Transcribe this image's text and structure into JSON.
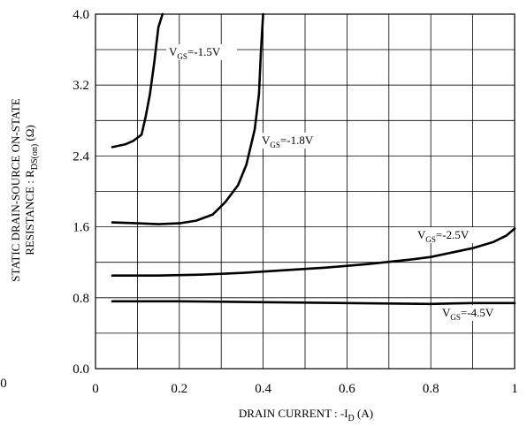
{
  "chart_data": {
    "type": "line",
    "xlabel": "DRAIN CURRENT : -I",
    "xlabel_sub": "D",
    "xlabel_unit": " (A)",
    "ylabel_line1": "STATIC DRAIN-SOURCE ON-STATE",
    "ylabel_line2_pre": "RESISTANCE : R",
    "ylabel_line2_sub": "DS(on)",
    "ylabel_line2_post": " (Ω)",
    "xlim": [
      0,
      1
    ],
    "ylim": [
      0,
      4
    ],
    "x_ticks": [
      0,
      0.2,
      0.4,
      0.6,
      0.8,
      1
    ],
    "x_tick_labels": [
      "0",
      "0.2",
      "0.4",
      "0.6",
      "0.8",
      "1"
    ],
    "y_ticks": [
      0,
      0.8,
      1.6,
      2.4,
      3.2,
      4
    ],
    "y_tick_labels": [
      "0.0",
      "0.8",
      "1.6",
      "2.4",
      "3.2",
      "4.0"
    ],
    "stray_label": "0",
    "grid": true,
    "series": [
      {
        "name": "VGS=-1.5V",
        "label_main": "V",
        "label_sub": "GS",
        "label_post": "=-1.5V",
        "x": [
          0.04,
          0.07,
          0.09,
          0.11,
          0.12,
          0.13,
          0.14,
          0.15,
          0.16
        ],
        "y": [
          2.5,
          2.53,
          2.57,
          2.64,
          2.85,
          3.1,
          3.45,
          3.85,
          4.0
        ]
      },
      {
        "name": "VGS=-1.8V",
        "label_main": "V",
        "label_sub": "GS",
        "label_post": "=-1.8V",
        "x": [
          0.04,
          0.1,
          0.15,
          0.2,
          0.24,
          0.28,
          0.31,
          0.34,
          0.36,
          0.38,
          0.39,
          0.395,
          0.4
        ],
        "y": [
          1.65,
          1.64,
          1.63,
          1.64,
          1.67,
          1.74,
          1.88,
          2.07,
          2.3,
          2.7,
          3.1,
          3.6,
          4.0
        ]
      },
      {
        "name": "VGS=-2.5V",
        "label_main": "V",
        "label_sub": "GS",
        "label_post": "=-2.5V",
        "x": [
          0.04,
          0.15,
          0.25,
          0.35,
          0.45,
          0.55,
          0.65,
          0.75,
          0.8,
          0.85,
          0.9,
          0.95,
          0.98,
          1.0
        ],
        "y": [
          1.05,
          1.05,
          1.06,
          1.08,
          1.11,
          1.14,
          1.18,
          1.23,
          1.26,
          1.31,
          1.36,
          1.43,
          1.5,
          1.58
        ]
      },
      {
        "name": "VGS=-4.5V",
        "label_main": "V",
        "label_sub": "GS",
        "label_post": "=-4.5V",
        "x": [
          0.04,
          0.2,
          0.4,
          0.6,
          0.8,
          0.9,
          1.0
        ],
        "y": [
          0.76,
          0.76,
          0.75,
          0.74,
          0.73,
          0.74,
          0.74
        ]
      }
    ]
  }
}
